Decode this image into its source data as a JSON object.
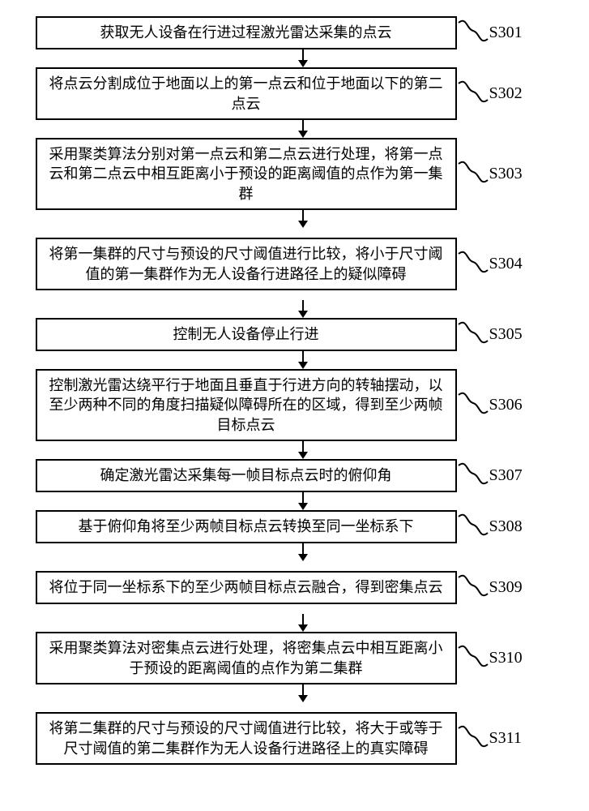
{
  "flow": {
    "box_border_color": "#000000",
    "box_border_width": 2,
    "text_color": "#000000",
    "font_size_box": 18,
    "font_size_label": 20,
    "arrow_color": "#000000",
    "background": "#ffffff",
    "steps": [
      {
        "id": "S301",
        "text": "获取无人设备在行进过程激光雷达采集的点云"
      },
      {
        "id": "S302",
        "text": "将点云分割成位于地面以上的第一点云和位于地面以下的第二点云"
      },
      {
        "id": "S303",
        "text": "采用聚类算法分别对第一点云和第二点云进行处理，将第一点云和第二点云中相互距离小于预设的距离阈值的点作为第一集群"
      },
      {
        "id": "S304",
        "text": "将第一集群的尺寸与预设的尺寸阈值进行比较，将小于尺寸阈值的第一集群作为无人设备行进路径上的疑似障碍"
      },
      {
        "id": "S305",
        "text": "控制无人设备停止行进"
      },
      {
        "id": "S306",
        "text": "控制激光雷达绕平行于地面且垂直于行进方向的转轴摆动，以至少两种不同的角度扫描疑似障碍所在的区域，得到至少两帧目标点云"
      },
      {
        "id": "S307",
        "text": "确定激光雷达采集每一帧目标点云时的俯仰角"
      },
      {
        "id": "S308",
        "text": "基于俯仰角将至少两帧目标点云转换至同一坐标系下"
      },
      {
        "id": "S309",
        "text": "将位于同一坐标系下的至少两帧目标点云融合，得到密集点云"
      },
      {
        "id": "S310",
        "text": "采用聚类算法对密集点云进行处理，将密集点云中相互距离小于预设的距离阈值的点作为第二集群"
      },
      {
        "id": "S311",
        "text": "将第二集群的尺寸与预设的尺寸阈值进行比较，将大于或等于尺寸阈值的第二集群作为无人设备行进路径上的真实障碍"
      }
    ]
  }
}
